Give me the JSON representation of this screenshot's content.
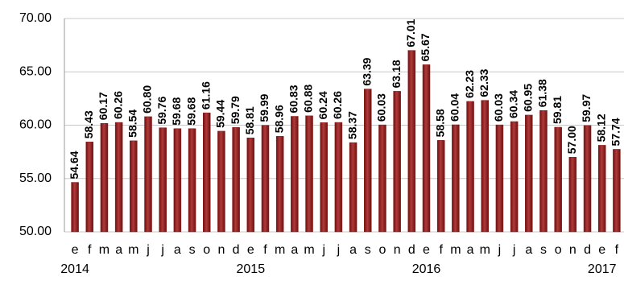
{
  "chart_data": {
    "type": "bar",
    "categories": [
      "e",
      "f",
      "m",
      "a",
      "m",
      "j",
      "j",
      "a",
      "s",
      "o",
      "n",
      "d",
      "e",
      "f",
      "m",
      "a",
      "m",
      "j",
      "j",
      "a",
      "s",
      "o",
      "n",
      "d",
      "e",
      "f",
      "m",
      "a",
      "m",
      "j",
      "j",
      "a",
      "s",
      "o",
      "n",
      "d",
      "e",
      "f"
    ],
    "year_labels": [
      "2014",
      "2015",
      "2016",
      "2017"
    ],
    "values": [
      54.64,
      58.43,
      60.17,
      60.26,
      58.54,
      60.8,
      59.76,
      59.68,
      59.68,
      61.16,
      59.44,
      59.79,
      58.81,
      59.99,
      58.96,
      60.83,
      60.88,
      60.24,
      60.26,
      58.37,
      63.39,
      60.03,
      63.18,
      67.01,
      65.67,
      58.58,
      60.04,
      62.23,
      62.33,
      60.03,
      60.34,
      60.95,
      61.38,
      59.81,
      57,
      59.97,
      58.12,
      57.74
    ],
    "value_labels": [
      "54.64",
      "58.43",
      "60.17",
      "60.26",
      "58.54",
      "60.80",
      "59.76",
      "59.68",
      "59.68",
      "61.16",
      "59.44",
      "59.79",
      "58.81",
      "59.99",
      "58.96",
      "60.83",
      "60.88",
      "60.24",
      "60.26",
      "58.37",
      "63.39",
      "60.03",
      "63.18",
      "67.01",
      "65.67",
      "58.58",
      "60.04",
      "62.23",
      "62.33",
      "60.03",
      "60.34",
      "60.95",
      "61.38",
      "59.81",
      "57.00",
      "59.97",
      "58.12",
      "57.74"
    ],
    "color": "#8b1a1a",
    "ylim": [
      50,
      70
    ],
    "yticks": [
      {
        "value": 50,
        "label": "50.00"
      },
      {
        "value": 55,
        "label": "55.00"
      },
      {
        "value": 60,
        "label": "60.00"
      },
      {
        "value": 65,
        "label": "65.00"
      },
      {
        "value": 70,
        "label": "70.00"
      }
    ],
    "grid": true
  }
}
